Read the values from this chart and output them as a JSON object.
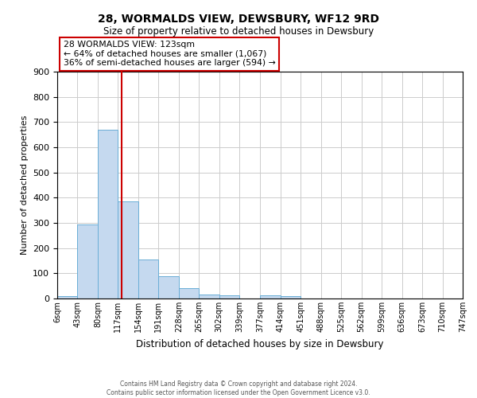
{
  "title": "28, WORMALDS VIEW, DEWSBURY, WF12 9RD",
  "subtitle": "Size of property relative to detached houses in Dewsbury",
  "xlabel": "Distribution of detached houses by size in Dewsbury",
  "ylabel": "Number of detached properties",
  "bin_edges": [
    6,
    43,
    80,
    117,
    154,
    191,
    228,
    265,
    302,
    339,
    377,
    414,
    451,
    488,
    525,
    562,
    599,
    636,
    673,
    710,
    747
  ],
  "bin_labels": [
    "6sqm",
    "43sqm",
    "80sqm",
    "117sqm",
    "154sqm",
    "191sqm",
    "228sqm",
    "265sqm",
    "302sqm",
    "339sqm",
    "377sqm",
    "414sqm",
    "451sqm",
    "488sqm",
    "525sqm",
    "562sqm",
    "599sqm",
    "636sqm",
    "673sqm",
    "710sqm",
    "747sqm"
  ],
  "bar_heights": [
    8,
    295,
    670,
    385,
    155,
    88,
    40,
    17,
    12,
    0,
    12,
    8,
    0,
    0,
    0,
    0,
    0,
    0,
    0,
    0
  ],
  "bar_color": "#c5d9ef",
  "bar_edge_color": "#6aaed6",
  "ylim": [
    0,
    900
  ],
  "yticks": [
    0,
    100,
    200,
    300,
    400,
    500,
    600,
    700,
    800,
    900
  ],
  "property_line_x": 123,
  "property_line_color": "#cc0000",
  "annotation_title": "28 WORMALDS VIEW: 123sqm",
  "annotation_line1": "← 64% of detached houses are smaller (1,067)",
  "annotation_line2": "36% of semi-detached houses are larger (594) →",
  "annotation_box_color": "#ffffff",
  "annotation_box_edge_color": "#cc0000",
  "footer_line1": "Contains HM Land Registry data © Crown copyright and database right 2024.",
  "footer_line2": "Contains public sector information licensed under the Open Government Licence v3.0.",
  "background_color": "#ffffff",
  "grid_color": "#cccccc"
}
